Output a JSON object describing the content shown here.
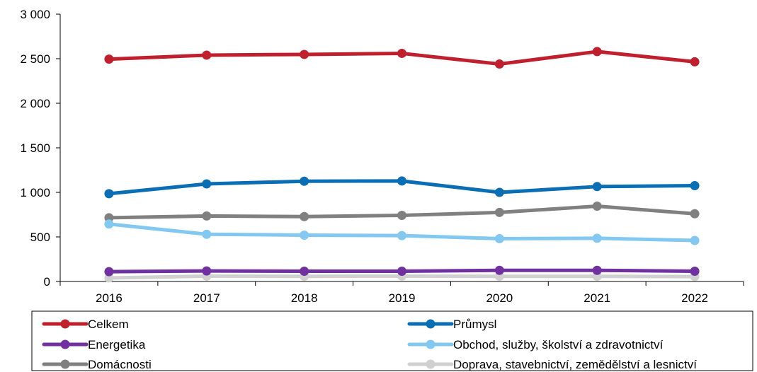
{
  "chart_data": {
    "type": "line",
    "title": "",
    "xlabel": "",
    "ylabel": "",
    "categories": [
      "2016",
      "2017",
      "2018",
      "2019",
      "2020",
      "2021",
      "2022"
    ],
    "ylim": [
      0,
      3000
    ],
    "y_ticks": [
      0,
      500,
      1000,
      1500,
      2000,
      2500,
      3000
    ],
    "y_tick_labels": [
      "0",
      "500",
      "1 000",
      "1 500",
      "2 000",
      "2 500",
      "3 000"
    ],
    "grid": false,
    "legend_position": "bottom",
    "series": [
      {
        "name": "Celkem",
        "color": "#c0202e",
        "values": [
          2495,
          2540,
          2548,
          2560,
          2440,
          2580,
          2465
        ]
      },
      {
        "name": "Průmysl",
        "color": "#0a6eb4",
        "values": [
          985,
          1095,
          1125,
          1128,
          1000,
          1065,
          1075
        ]
      },
      {
        "name": "Energetika",
        "color": "#7030a0",
        "values": [
          110,
          118,
          115,
          115,
          125,
          125,
          115
        ]
      },
      {
        "name": "Obchod, služby, školství a zdravotnictví",
        "color": "#82c8f0",
        "values": [
          645,
          530,
          520,
          515,
          480,
          485,
          460
        ]
      },
      {
        "name": "Domácnosti",
        "color": "#808080",
        "values": [
          715,
          735,
          728,
          742,
          775,
          845,
          760
        ]
      },
      {
        "name": "Doprava, stavebnictví, zemědělství a lesnictví",
        "color": "#d0d0d0",
        "values": [
          40,
          60,
          58,
          60,
          58,
          58,
          55
        ]
      }
    ]
  }
}
